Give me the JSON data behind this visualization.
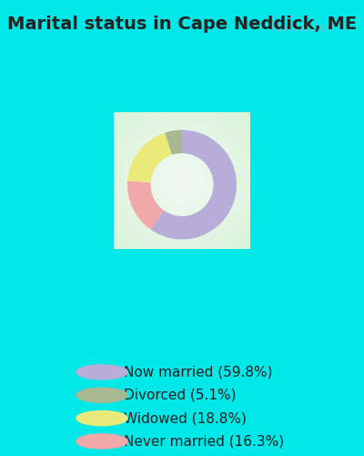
{
  "title": "Marital status in Cape Neddick, ME",
  "slices": [
    59.8,
    5.1,
    18.8,
    16.3
  ],
  "labels": [
    "Now married (59.8%)",
    "Divorced (5.1%)",
    "Widowed (18.8%)",
    "Never married (16.3%)"
  ],
  "colors": [
    "#b8acd8",
    "#a8b890",
    "#eaea7a",
    "#f0a8a8"
  ],
  "bg_outer": "#00e8e8",
  "title_fontsize": 14,
  "legend_fontsize": 11,
  "watermark": "City-Data.com",
  "donut_order": [
    0,
    3,
    2,
    1
  ],
  "startangle": 90
}
